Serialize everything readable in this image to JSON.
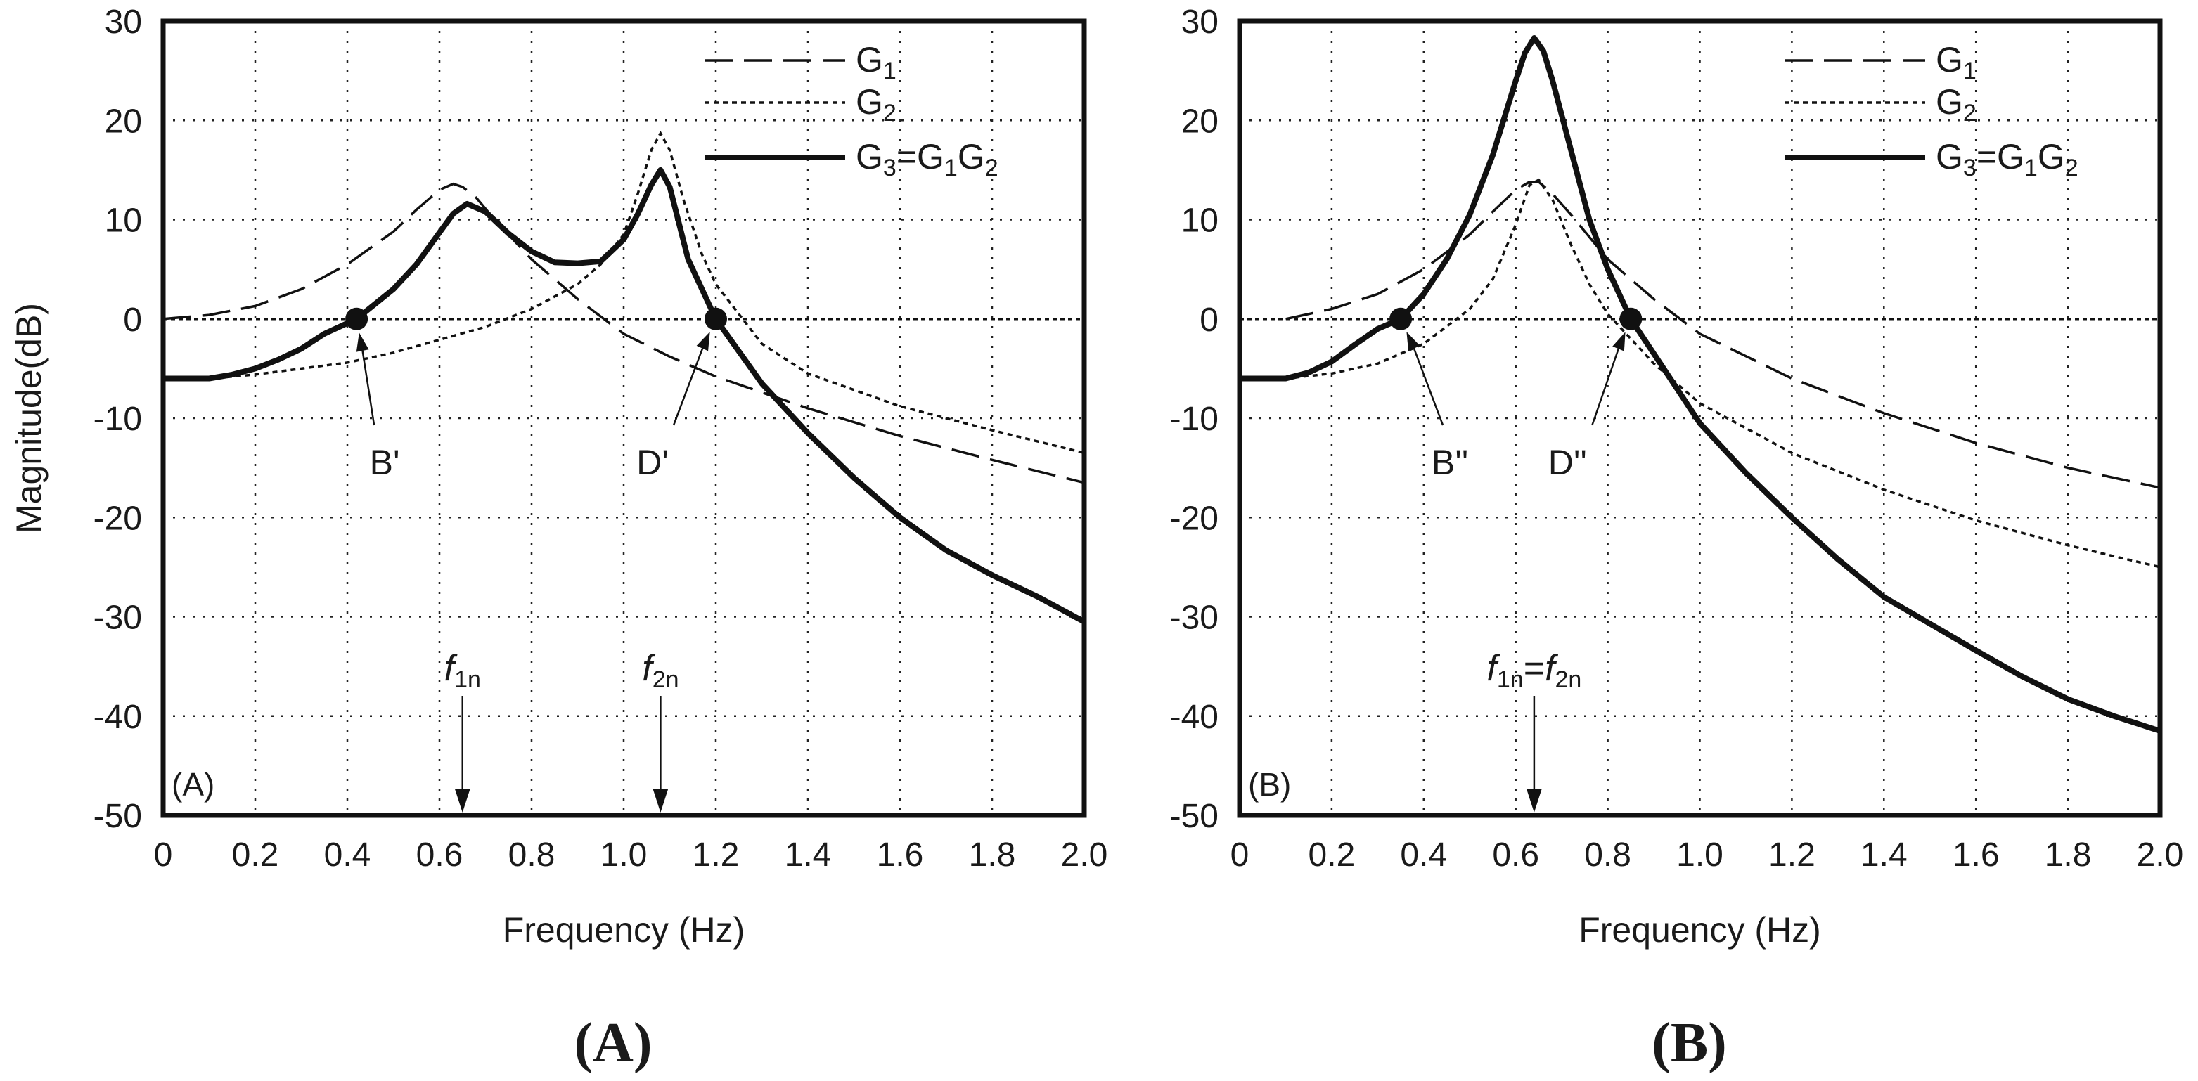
{
  "chart_data": [
    {
      "type": "line",
      "panel": "A",
      "panel_tag": "(A)",
      "caption": "(A)",
      "title": "",
      "xlabel": "Frequency (Hz)",
      "ylabel": "Magnitude(dB)",
      "xlim": [
        0,
        2.0
      ],
      "ylim": [
        -50,
        30
      ],
      "grid": true,
      "legend_position": "top-right",
      "x_ticks": [
        0,
        0.2,
        0.4,
        0.6,
        0.8,
        1.0,
        1.2,
        1.4,
        1.6,
        1.8,
        2.0
      ],
      "x_tick_labels": [
        "0",
        "0.2",
        "0.4",
        "0.6",
        "0.8",
        "1.0",
        "1.2",
        "1.4",
        "1.6",
        "1.8",
        "2.0"
      ],
      "y_ticks": [
        30,
        20,
        10,
        0,
        -10,
        -20,
        -30,
        -40,
        -50
      ],
      "y_tick_labels": [
        "30",
        "20",
        "10",
        "0",
        "-10",
        "-20",
        "-30",
        "-40",
        "-50"
      ],
      "legend": [
        {
          "key": "G1",
          "base": "G",
          "sub": "1",
          "rest": ""
        },
        {
          "key": "G2",
          "base": "G",
          "sub": "2",
          "rest": ""
        },
        {
          "key": "G3",
          "base": "G",
          "sub": "3",
          "rest": "=G",
          "sub2": "1",
          "rest2": "G",
          "sub3": "2"
        }
      ],
      "series": [
        {
          "name": "G1",
          "style": "dashed",
          "x": [
            0,
            0.1,
            0.2,
            0.3,
            0.4,
            0.5,
            0.55,
            0.6,
            0.63,
            0.65,
            0.68,
            0.72,
            0.8,
            0.9,
            1.0,
            1.1,
            1.2,
            1.3,
            1.4,
            1.6,
            1.8,
            2.0
          ],
          "y": [
            0,
            0.4,
            1.3,
            3,
            5.5,
            8.8,
            11,
            13,
            13.6,
            13.3,
            12.2,
            10,
            6,
            2,
            -1.5,
            -3.8,
            -5.8,
            -7.4,
            -9,
            -11.8,
            -14.2,
            -16.5
          ]
        },
        {
          "name": "G2",
          "style": "dotted",
          "x": [
            0,
            0.1,
            0.2,
            0.3,
            0.4,
            0.5,
            0.6,
            0.7,
            0.8,
            0.9,
            0.95,
            1.0,
            1.03,
            1.06,
            1.08,
            1.1,
            1.13,
            1.17,
            1.2,
            1.3,
            1.4,
            1.6,
            1.8,
            2.0
          ],
          "y": [
            -6,
            -6,
            -5.6,
            -5,
            -4.4,
            -3.4,
            -2.1,
            -0.8,
            1,
            3.5,
            5.5,
            8.5,
            12.5,
            17,
            18.7,
            17,
            12,
            6.5,
            3.5,
            -2.5,
            -5.5,
            -8.8,
            -11.2,
            -13.5
          ]
        },
        {
          "name": "G3",
          "style": "solid",
          "x": [
            0,
            0.05,
            0.1,
            0.15,
            0.2,
            0.25,
            0.3,
            0.35,
            0.42,
            0.5,
            0.55,
            0.6,
            0.63,
            0.66,
            0.7,
            0.75,
            0.8,
            0.85,
            0.9,
            0.95,
            1.0,
            1.03,
            1.06,
            1.08,
            1.1,
            1.14,
            1.2,
            1.3,
            1.4,
            1.5,
            1.6,
            1.7,
            1.8,
            1.9,
            2.0
          ],
          "y": [
            -6,
            -6,
            -6,
            -5.6,
            -5,
            -4.1,
            -3,
            -1.5,
            0,
            3,
            5.5,
            8.7,
            10.6,
            11.6,
            10.8,
            8.6,
            6.8,
            5.7,
            5.6,
            5.8,
            8,
            10.5,
            13.5,
            15,
            13.3,
            6,
            0,
            -6.5,
            -11.5,
            -16,
            -20,
            -23.3,
            -25.8,
            -28,
            -30.5
          ]
        }
      ],
      "points": [
        {
          "label": "B'",
          "x": 0.42,
          "y": 0
        },
        {
          "label": "D'",
          "x": 1.2,
          "y": 0
        }
      ],
      "freq_markers": [
        {
          "x": 0.65,
          "label_base": "f",
          "label_sub": "1n"
        },
        {
          "x": 1.08,
          "label_base": "f",
          "label_sub": "2n"
        }
      ]
    },
    {
      "type": "line",
      "panel": "B",
      "panel_tag": "(B)",
      "caption": "(B)",
      "title": "",
      "xlabel": "Frequency (Hz)",
      "ylabel": "",
      "xlim": [
        0,
        2.0
      ],
      "ylim": [
        -50,
        30
      ],
      "grid": true,
      "legend_position": "top-right",
      "x_ticks": [
        0,
        0.2,
        0.4,
        0.6,
        0.8,
        1.0,
        1.2,
        1.4,
        1.6,
        1.8,
        2.0
      ],
      "x_tick_labels": [
        "0",
        "0.2",
        "0.4",
        "0.6",
        "0.8",
        "1.0",
        "1.2",
        "1.4",
        "1.6",
        "1.8",
        "2.0"
      ],
      "y_ticks": [
        30,
        20,
        10,
        0,
        -10,
        -20,
        -30,
        -40,
        -50
      ],
      "y_tick_labels": [
        "30",
        "20",
        "10",
        "0",
        "-10",
        "-20",
        "-30",
        "-40",
        "-50"
      ],
      "legend": [
        {
          "key": "G1",
          "base": "G",
          "sub": "1",
          "rest": ""
        },
        {
          "key": "G2",
          "base": "G",
          "sub": "2",
          "rest": ""
        },
        {
          "key": "G3",
          "base": "G",
          "sub": "3",
          "rest": "=G",
          "sub2": "1",
          "rest2": "G",
          "sub3": "2"
        }
      ],
      "series": [
        {
          "name": "G1",
          "style": "dashed",
          "x": [
            0.1,
            0.2,
            0.3,
            0.4,
            0.5,
            0.55,
            0.6,
            0.63,
            0.65,
            0.68,
            0.72,
            0.8,
            0.9,
            1.0,
            1.2,
            1.4,
            1.6,
            1.8,
            2.0
          ],
          "y": [
            0,
            1,
            2.5,
            5,
            8.5,
            10.8,
            13,
            13.8,
            13.8,
            12.6,
            10.5,
            6,
            2,
            -1.5,
            -6,
            -9.5,
            -12.5,
            -15,
            -17
          ]
        },
        {
          "name": "G2",
          "style": "dotted",
          "x": [
            0,
            0.1,
            0.2,
            0.3,
            0.4,
            0.5,
            0.55,
            0.6,
            0.63,
            0.65,
            0.68,
            0.72,
            0.76,
            0.8,
            0.9,
            1.0,
            1.2,
            1.4,
            1.6,
            1.8,
            2.0
          ],
          "y": [
            -6,
            -6,
            -5.5,
            -4.5,
            -2.5,
            1,
            4,
            9.5,
            13.5,
            14,
            12,
            7.5,
            3.5,
            0.5,
            -4.5,
            -8.5,
            -13.5,
            -17.2,
            -20.3,
            -22.8,
            -25
          ]
        },
        {
          "name": "G3",
          "style": "solid",
          "x": [
            0,
            0.05,
            0.1,
            0.15,
            0.2,
            0.25,
            0.3,
            0.35,
            0.4,
            0.45,
            0.5,
            0.55,
            0.6,
            0.62,
            0.64,
            0.66,
            0.68,
            0.72,
            0.76,
            0.8,
            0.85,
            0.9,
            1.0,
            1.1,
            1.2,
            1.3,
            1.4,
            1.5,
            1.6,
            1.7,
            1.8,
            1.9,
            2.0
          ],
          "y": [
            -6,
            -6,
            -6,
            -5.4,
            -4.3,
            -2.6,
            -1,
            0,
            2.5,
            6,
            10.5,
            16.5,
            24,
            26.8,
            28.3,
            27,
            24,
            17,
            10,
            5,
            0,
            -3.5,
            -10.5,
            -15.5,
            -20,
            -24.2,
            -28,
            -30.7,
            -33.4,
            -36,
            -38.3,
            -40,
            -41.5
          ]
        }
      ],
      "points": [
        {
          "label": "B''",
          "x": 0.35,
          "y": 0
        },
        {
          "label": "D''",
          "x": 0.85,
          "y": 0
        }
      ],
      "freq_markers": [
        {
          "x": 0.64,
          "label_base": "f",
          "label_sub": "1n",
          "label_mid": "=",
          "label_base2": "f",
          "label_sub2": "2n"
        }
      ]
    }
  ]
}
